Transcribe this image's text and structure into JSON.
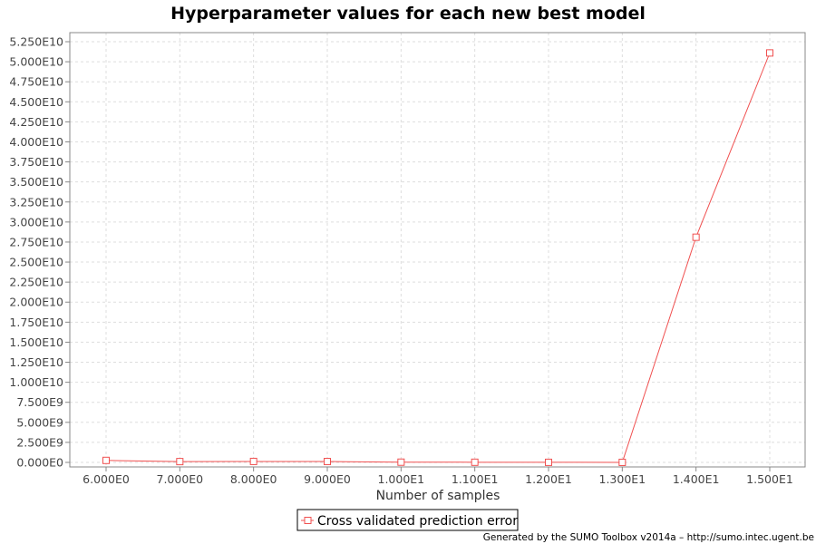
{
  "chart_data": {
    "type": "line",
    "title": "Hyperparameter values for each new best model",
    "xlabel": "Number of samples",
    "ylabel": "",
    "x": [
      6,
      7,
      8,
      9,
      10,
      11,
      12,
      13,
      14,
      15
    ],
    "x_tick_values": [
      6,
      7,
      8,
      9,
      10,
      11,
      12,
      13,
      14,
      15
    ],
    "x_tick_labels": [
      "6.000E0",
      "7.000E0",
      "8.000E0",
      "9.000E0",
      "1.000E1",
      "1.100E1",
      "1.200E1",
      "1.300E1",
      "1.400E1",
      "1.500E1"
    ],
    "xlim": [
      5.5,
      15.5
    ],
    "ylim": [
      0,
      53500000000.0
    ],
    "y_tick_values": [
      0,
      2500000000.0,
      5000000000.0,
      7500000000.0,
      10000000000.0,
      12500000000.0,
      15000000000.0,
      17500000000.0,
      20000000000.0,
      22500000000.0,
      25000000000.0,
      27500000000.0,
      30000000000.0,
      32500000000.0,
      35000000000.0,
      37500000000.0,
      40000000000.0,
      42500000000.0,
      45000000000.0,
      47500000000.0,
      50000000000.0,
      52500000000.0
    ],
    "y_tick_labels": [
      "0.000E0",
      "2.500E9",
      "5.000E9",
      "7.500E9",
      "1.000E10",
      "1.250E10",
      "1.500E10",
      "1.750E10",
      "2.000E10",
      "2.250E10",
      "2.500E10",
      "2.750E10",
      "3.000E10",
      "3.250E10",
      "3.500E10",
      "3.750E10",
      "4.000E10",
      "4.250E10",
      "4.500E10",
      "4.750E10",
      "5.000E10",
      "5.250E10"
    ],
    "grid": true,
    "legend_position": "bottom-center",
    "series": [
      {
        "name": "Cross validated prediction error",
        "color": "#f05050",
        "marker": "square",
        "values": [
          250000000.0,
          100000000.0,
          120000000.0,
          110000000.0,
          30000000.0,
          20000000.0,
          10000000.0,
          5000000.0,
          28100000000.0,
          51100000000.0
        ]
      }
    ]
  },
  "footer": {
    "credit": "Generated by the SUMO Toolbox v2014a – http://sumo.intec.ugent.be"
  }
}
